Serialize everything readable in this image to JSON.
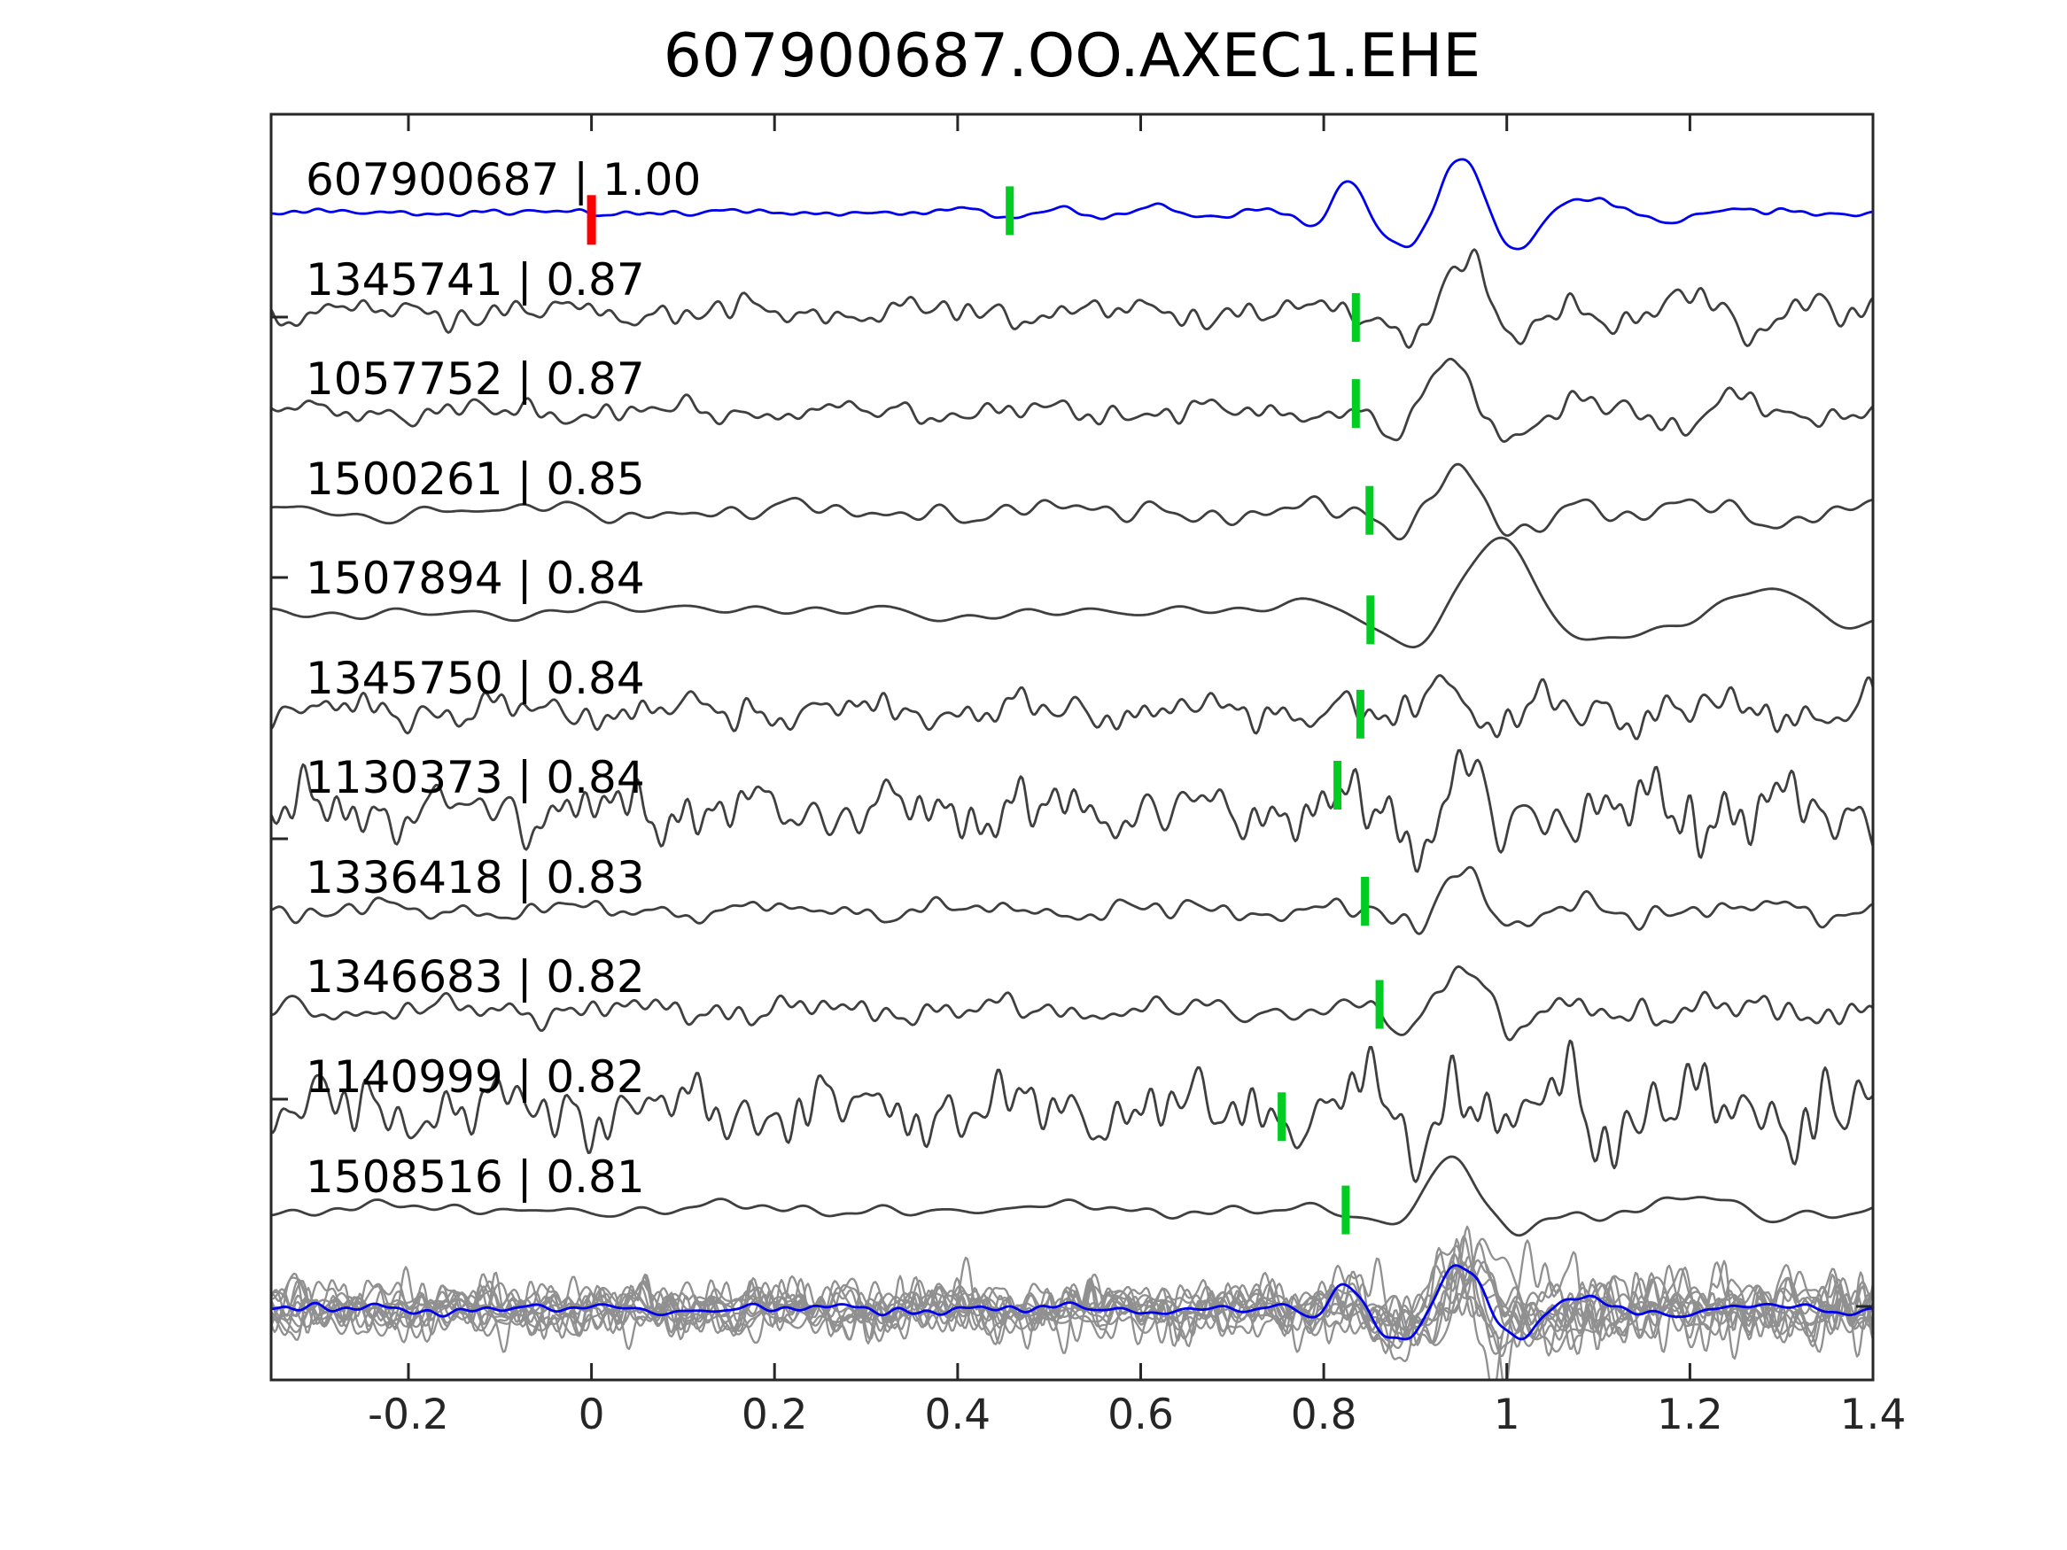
{
  "title": "607900687.OO.AXEC1.EHE",
  "colors": {
    "background": "#FFFFFF",
    "template_trace": "#0000EE",
    "detection_trace": "#3F3F3F",
    "stack_member": "#909090",
    "pick_marker": "#00CC22",
    "origin_marker": "#FF0000",
    "spine": "#262626",
    "text": "#000000"
  },
  "axis": {
    "xlim": [
      -0.35,
      1.4
    ],
    "xticks": [
      {
        "v": -0.2,
        "label": "-0.2"
      },
      {
        "v": 0,
        "label": "0"
      },
      {
        "v": 0.2,
        "label": "0.2"
      },
      {
        "v": 0.4,
        "label": "0.4"
      },
      {
        "v": 0.6,
        "label": "0.6"
      },
      {
        "v": 0.8,
        "label": "0.8"
      },
      {
        "v": 1,
        "label": "1"
      },
      {
        "v": 1.2,
        "label": "1.2"
      },
      {
        "v": 1.4,
        "label": "1.4"
      }
    ],
    "left_spine_tick_y": [
      358,
      652,
      947,
      1241
    ],
    "right_spine_tick_y": [
      1475
    ]
  },
  "chart_data": {
    "type": "line",
    "title": "607900687.OO.AXEC1.EHE",
    "xlabel": "",
    "ylabel": "",
    "xlim": [
      -0.35,
      1.4
    ],
    "grid": false,
    "legend": null,
    "description": "Waveform template-matching figure: template event 607900687 (blue, correlation 1.00) above 10 matched detections (dark gray) labeled 'id | cc'. Green bars mark pick times on each trace, the red bar marks template time 0, and the bottom row overlays all aligned traces (light gray) with the template in blue.",
    "traces": [
      {
        "label": "607900687 | 1.00",
        "id": "607900687",
        "cc": 1.0,
        "pick_time": 0.457,
        "origin_time": 0.0,
        "role": "template",
        "synth": {
          "seed": 11,
          "noise": [
            3,
            18
          ],
          "packets": [
            [
              58,
              0.95,
              0.085,
              7.5
            ],
            [
              26,
              0.825,
              0.05,
              11
            ],
            [
              13,
              1.1,
              0.12,
              6
            ],
            [
              6,
              0.62,
              0.3,
              9
            ]
          ],
          "post": 0
        }
      },
      {
        "label": "1345741 | 0.87",
        "id": "1345741",
        "cc": 0.87,
        "pick_time": 0.835,
        "role": "detection",
        "synth": {
          "seed": 21,
          "noise": [
            13,
            20
          ],
          "packets": [
            [
              52,
              0.95,
              0.07,
              7.2
            ],
            [
              18,
              1.2,
              0.18,
              8
            ]
          ],
          "post": 0.25
        }
      },
      {
        "label": "1057752 | 0.87",
        "id": "1057752",
        "cc": 0.87,
        "pick_time": 0.835,
        "role": "detection",
        "synth": {
          "seed": 31,
          "noise": [
            11,
            19
          ],
          "packets": [
            [
              62,
              0.94,
              0.075,
              6.8
            ],
            [
              15,
              1.25,
              0.15,
              7
            ]
          ],
          "post": 0.1
        }
      },
      {
        "label": "1500261 | 0.85",
        "id": "1500261",
        "cc": 0.85,
        "pick_time": 0.85,
        "role": "detection",
        "synth": {
          "seed": 41,
          "noise": [
            10,
            12
          ],
          "packets": [
            [
              58,
              0.95,
              0.09,
              6.2
            ],
            [
              16,
              1.22,
              0.2,
              6
            ]
          ],
          "post": 0.1
        }
      },
      {
        "label": "1507894 | 0.84",
        "id": "1507894",
        "cc": 0.84,
        "pick_time": 0.851,
        "role": "detection",
        "synth": {
          "seed": 51,
          "noise": [
            7,
            7
          ],
          "packets": [
            [
              80,
              0.99,
              0.12,
              4.2
            ],
            [
              20,
              1.28,
              0.2,
              4.5
            ]
          ],
          "post": 0.1
        }
      },
      {
        "label": "1345750 | 0.84",
        "id": "1345750",
        "cc": 0.84,
        "pick_time": 0.84,
        "role": "detection",
        "synth": {
          "seed": 61,
          "noise": [
            16,
            21
          ],
          "packets": [
            [
              48,
              0.93,
              0.06,
              7.5
            ]
          ],
          "post": 0.3
        }
      },
      {
        "label": "1130373 | 0.84",
        "id": "1130373",
        "cc": 0.84,
        "pick_time": 0.815,
        "role": "detection",
        "synth": {
          "seed": 71,
          "noise": [
            26,
            23
          ],
          "packets": [
            [
              42,
              0.95,
              0.09,
              9
            ]
          ],
          "post": 0.35
        }
      },
      {
        "label": "1336418 | 0.83",
        "id": "1336418",
        "cc": 0.83,
        "pick_time": 0.845,
        "role": "detection",
        "synth": {
          "seed": 81,
          "noise": [
            10,
            17
          ],
          "packets": [
            [
              54,
              0.95,
              0.07,
              7
            ]
          ],
          "post": 0.2
        }
      },
      {
        "label": "1346683 | 0.82",
        "id": "1346683",
        "cc": 0.82,
        "pick_time": 0.861,
        "role": "detection",
        "synth": {
          "seed": 91,
          "noise": [
            12,
            19
          ],
          "packets": [
            [
              60,
              0.95,
              0.07,
              6.8
            ]
          ],
          "post": 0.2
        }
      },
      {
        "label": "1140999 | 0.82",
        "id": "1140999",
        "cc": 0.82,
        "pick_time": 0.754,
        "role": "detection",
        "synth": {
          "seed": 101,
          "noise": [
            30,
            24
          ],
          "packets": [
            [
              40,
              0.95,
              0.18,
              9
            ]
          ],
          "post": 0.35
        }
      },
      {
        "label": "1508516 | 0.81",
        "id": "1508516",
        "cc": 0.81,
        "pick_time": 0.824,
        "role": "detection",
        "synth": {
          "seed": 111,
          "noise": [
            7,
            10
          ],
          "packets": [
            [
              56,
              0.94,
              0.085,
              5.8
            ],
            [
              14,
              1.2,
              0.2,
              5
            ]
          ],
          "post": 0.1
        }
      }
    ],
    "stack_overlay": {
      "members": [
        {
          "seed": 201,
          "noise": [
            18,
            20
          ],
          "packets": [
            [
              45,
              0.95,
              0.08,
              7
            ]
          ],
          "post": 0.3
        },
        {
          "seed": 202,
          "noise": [
            24,
            24
          ],
          "packets": [
            [
              60,
              0.94,
              0.1,
              8
            ]
          ],
          "post": 0.3
        },
        {
          "seed": 203,
          "noise": [
            15,
            18
          ],
          "packets": [
            [
              35,
              0.96,
              0.07,
              6
            ]
          ],
          "post": 0.3
        },
        {
          "seed": 204,
          "noise": [
            30,
            26
          ],
          "packets": [
            [
              70,
              0.93,
              0.12,
              9
            ]
          ],
          "post": 0.3
        },
        {
          "seed": 205,
          "noise": [
            20,
            22
          ],
          "packets": [
            [
              50,
              0.97,
              0.09,
              7
            ]
          ],
          "post": 0.3
        },
        {
          "seed": 206,
          "noise": [
            26,
            25
          ],
          "packets": [
            [
              40,
              0.95,
              0.06,
              10
            ]
          ],
          "post": 0.3
        },
        {
          "seed": 207,
          "noise": [
            14,
            16
          ],
          "packets": [
            [
              55,
              0.98,
              0.11,
              6
            ]
          ],
          "post": 0.3
        },
        {
          "seed": 208,
          "noise": [
            22,
            21
          ],
          "packets": [
            [
              30,
              0.94,
              0.08,
              8
            ]
          ],
          "post": 0.3
        },
        {
          "seed": 209,
          "noise": [
            28,
            27
          ],
          "packets": [
            [
              65,
              0.95,
              0.1,
              9
            ]
          ],
          "post": 0.3
        },
        {
          "seed": 210,
          "noise": [
            16,
            19
          ],
          "packets": [
            [
              38,
              0.96,
              0.07,
              7
            ]
          ],
          "post": 0.3
        },
        {
          "seed": 211,
          "noise": [
            21,
            23
          ],
          "packets": [
            [
              48,
              0.93,
              0.09,
              8
            ]
          ],
          "post": 0.3
        },
        {
          "seed": 212,
          "noise": [
            25,
            24
          ],
          "packets": [
            [
              58,
              0.97,
              0.12,
              6
            ]
          ],
          "post": 0.3
        }
      ],
      "template": {
        "seed": 13,
        "noise": [
          5,
          15
        ],
        "packets": [
          [
            50,
            0.95,
            0.085,
            7.5
          ],
          [
            22,
            0.825,
            0.05,
            11
          ],
          [
            11,
            1.1,
            0.12,
            6
          ]
        ],
        "post": 0
      }
    }
  }
}
